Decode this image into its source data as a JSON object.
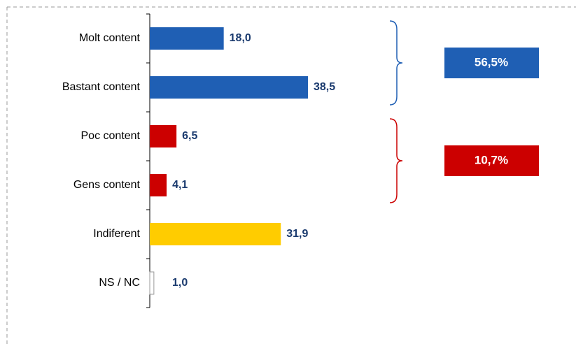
{
  "chart_data": {
    "type": "bar",
    "orientation": "horizontal",
    "categories": [
      "Molt content",
      "Bastant content",
      "Poc content",
      "Gens content",
      "Indiferent",
      "NS / NC"
    ],
    "values": [
      18.0,
      38.5,
      6.5,
      4.1,
      31.9,
      1.0
    ],
    "value_labels": [
      "18,0",
      "38,5",
      "6,5",
      "4,1",
      "31,9",
      "1,0"
    ],
    "colors": [
      "#1f5fb4",
      "#1f5fb4",
      "#cc0000",
      "#cc0000",
      "#ffcc00",
      "#ffffff"
    ],
    "groups": [
      {
        "value": 56.5,
        "label": "56,5%",
        "color": "#1f5fb4"
      },
      {
        "value": 10.7,
        "label": "10,7%",
        "color": "#cc0000"
      }
    ]
  }
}
